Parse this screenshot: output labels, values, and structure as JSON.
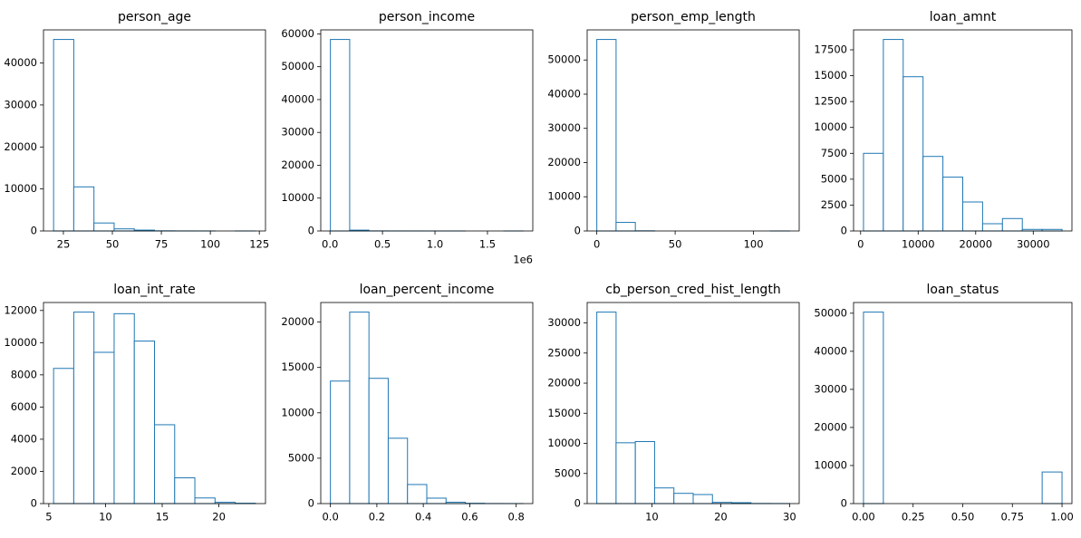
{
  "chart_data": [
    {
      "type": "histogram",
      "title": "person_age",
      "color": "#1f77b4",
      "bins": [
        20,
        30.3,
        40.6,
        50.9,
        61.2,
        71.5,
        81.8,
        92.1,
        102.4,
        112.7,
        123
      ],
      "counts": [
        45600,
        10500,
        1900,
        500,
        200,
        30,
        10,
        5,
        0,
        2
      ],
      "xlim": [
        14.85,
        128.15
      ],
      "ylim": [
        0,
        47880
      ],
      "xticks": [
        25,
        50,
        75,
        100,
        125
      ],
      "yticks": [
        0,
        10000,
        20000,
        30000,
        40000
      ]
    },
    {
      "type": "histogram",
      "title": "person_income",
      "color": "#1f77b4",
      "offset_text": "1e6",
      "bins": [
        4000,
        187600,
        371200,
        554800,
        738400,
        922000,
        1105600,
        1289200,
        1472800,
        1656400,
        1840000
      ],
      "counts": [
        58300,
        250,
        20,
        5,
        2,
        1,
        1,
        0,
        0,
        1
      ],
      "xlim": [
        -87800,
        1931800
      ],
      "ylim": [
        0,
        61215
      ],
      "xticks": [
        {
          "value": 0,
          "label": "0.0"
        },
        {
          "value": 500000,
          "label": "0.5"
        },
        {
          "value": 1000000,
          "label": "1.0"
        },
        {
          "value": 1500000,
          "label": "1.5"
        }
      ],
      "yticks": [
        0,
        10000,
        20000,
        30000,
        40000,
        50000,
        60000
      ]
    },
    {
      "type": "histogram",
      "title": "person_emp_length",
      "color": "#1f77b4",
      "bins": [
        0,
        12.3,
        24.6,
        36.9,
        49.2,
        61.5,
        73.8,
        86.1,
        98.4,
        110.7,
        123
      ],
      "counts": [
        56000,
        2500,
        40,
        0,
        0,
        0,
        0,
        0,
        0,
        2
      ],
      "xlim": [
        -6.15,
        129.15
      ],
      "ylim": [
        0,
        58800
      ],
      "xticks": [
        0,
        50,
        100
      ],
      "yticks": [
        0,
        10000,
        20000,
        30000,
        40000,
        50000
      ]
    },
    {
      "type": "histogram",
      "title": "loan_amnt",
      "color": "#1f77b4",
      "bins": [
        500,
        3950,
        7400,
        10850,
        14300,
        17750,
        21200,
        24650,
        28100,
        31550,
        35000
      ],
      "counts": [
        7500,
        18500,
        14900,
        7200,
        5200,
        2800,
        700,
        1200,
        150,
        150
      ],
      "xlim": [
        -1225,
        36725
      ],
      "ylim": [
        0,
        19425
      ],
      "xticks": [
        0,
        10000,
        20000,
        30000
      ],
      "yticks": [
        0,
        2500,
        5000,
        7500,
        10000,
        12500,
        15000,
        17500
      ]
    },
    {
      "type": "histogram",
      "title": "loan_int_rate",
      "color": "#1f77b4",
      "bins": [
        5.42,
        7.2,
        8.98,
        10.76,
        12.54,
        14.32,
        16.1,
        17.88,
        19.66,
        21.44,
        23.22
      ],
      "counts": [
        8400,
        11900,
        9400,
        11800,
        10100,
        4900,
        1600,
        350,
        80,
        20
      ],
      "xlim": [
        4.53,
        24.11
      ],
      "ylim": [
        0,
        12495
      ],
      "xticks": [
        5,
        10,
        15,
        20
      ],
      "yticks": [
        0,
        2000,
        4000,
        6000,
        8000,
        10000,
        12000
      ]
    },
    {
      "type": "histogram",
      "title": "loan_percent_income",
      "color": "#1f77b4",
      "bins": [
        0,
        0.083,
        0.166,
        0.249,
        0.332,
        0.415,
        0.498,
        0.581,
        0.664,
        0.747,
        0.83
      ],
      "counts": [
        13500,
        21100,
        13800,
        7200,
        2100,
        600,
        150,
        30,
        5,
        2
      ],
      "xlim": [
        -0.0415,
        0.8715
      ],
      "ylim": [
        0,
        22155
      ],
      "xticks": [
        {
          "value": 0,
          "label": "0.0"
        },
        0.2,
        0.4,
        0.6,
        0.8
      ],
      "yticks": [
        0,
        5000,
        10000,
        15000,
        20000
      ]
    },
    {
      "type": "histogram",
      "title": "cb_person_cred_hist_length",
      "color": "#1f77b4",
      "bins": [
        2,
        4.8,
        7.6,
        10.4,
        13.2,
        16,
        18.8,
        21.6,
        24.4,
        27.2,
        30
      ],
      "counts": [
        31800,
        10100,
        10300,
        2600,
        1700,
        1500,
        200,
        150,
        20,
        10
      ],
      "xlim": [
        0.6,
        31.4
      ],
      "ylim": [
        0,
        33390
      ],
      "xticks": [
        10,
        20,
        30
      ],
      "yticks": [
        0,
        5000,
        10000,
        15000,
        20000,
        25000,
        30000
      ]
    },
    {
      "type": "histogram",
      "title": "loan_status",
      "color": "#1f77b4",
      "bins": [
        0,
        0.1,
        0.2,
        0.3,
        0.4,
        0.5,
        0.6,
        0.7,
        0.8,
        0.9,
        1
      ],
      "counts": [
        50300,
        0,
        0,
        0,
        0,
        0,
        0,
        0,
        0,
        8300
      ],
      "xlim": [
        -0.05,
        1.05
      ],
      "ylim": [
        0,
        52815
      ],
      "xticks": [
        {
          "value": 0,
          "label": "0.00"
        },
        {
          "value": 0.25,
          "label": "0.25"
        },
        {
          "value": 0.5,
          "label": "0.50"
        },
        {
          "value": 0.75,
          "label": "0.75"
        },
        {
          "value": 1,
          "label": "1.00"
        }
      ],
      "yticks": [
        0,
        10000,
        20000,
        30000,
        40000,
        50000
      ]
    }
  ]
}
